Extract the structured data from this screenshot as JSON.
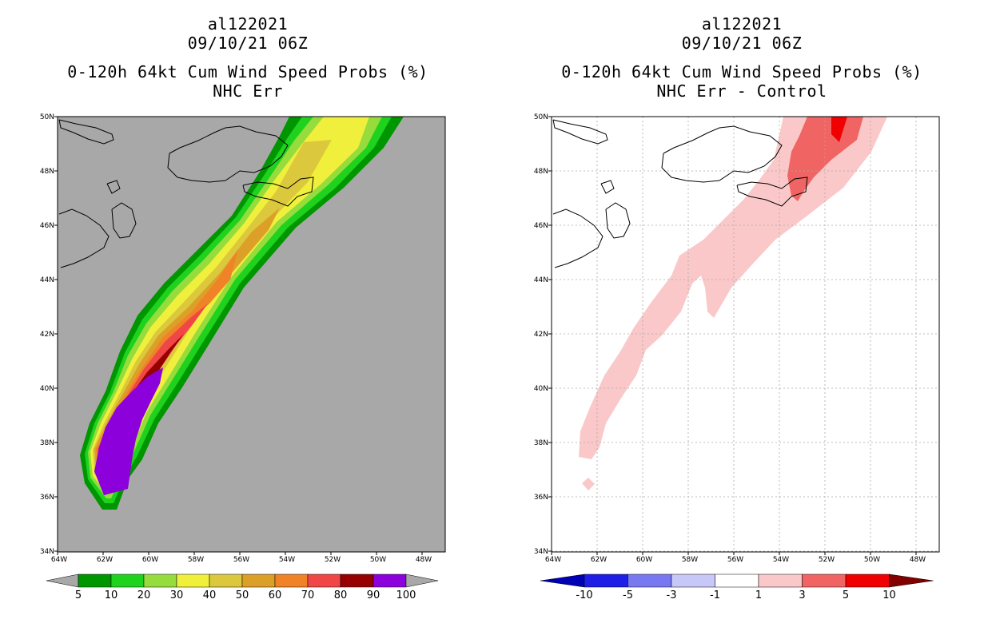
{
  "left_panel": {
    "storm_id": "al122021",
    "datetime": "09/10/21 06Z",
    "title": "0-120h 64kt Cum Wind Speed Probs (%)",
    "subtitle": "NHC Err",
    "background_color": "#a8a8a8",
    "colorbar": {
      "labels": [
        "5",
        "10",
        "20",
        "30",
        "40",
        "50",
        "60",
        "70",
        "80",
        "90",
        "100"
      ],
      "colors": [
        "#009600",
        "#1ed21e",
        "#96dc3c",
        "#f0f03c",
        "#dcc83c",
        "#dca028",
        "#f08228",
        "#f04646",
        "#960000",
        "#8c00dc"
      ]
    }
  },
  "right_panel": {
    "storm_id": "al122021",
    "datetime": "09/10/21 06Z",
    "title": "0-120h 64kt Cum Wind Speed Probs (%)",
    "subtitle": "NHC Err - Control",
    "background_color": "#ffffff",
    "colorbar": {
      "labels": [
        "-10",
        "-5",
        "-3",
        "-1",
        "1",
        "3",
        "5",
        "10"
      ],
      "colors": [
        "#0000b4",
        "#1e1ee6",
        "#7878f0",
        "#c8c8f8",
        "#ffffff",
        "#fac8c8",
        "#f06464",
        "#f00000",
        "#820000"
      ]
    }
  },
  "map_axes": {
    "lon_labels": [
      "64W",
      "62W",
      "60W",
      "58W",
      "56W",
      "54W",
      "52W",
      "50W",
      "48W"
    ],
    "lat_labels": [
      "50N",
      "48N",
      "46N",
      "44N",
      "42N",
      "40N",
      "38N",
      "36N",
      "34N"
    ]
  }
}
